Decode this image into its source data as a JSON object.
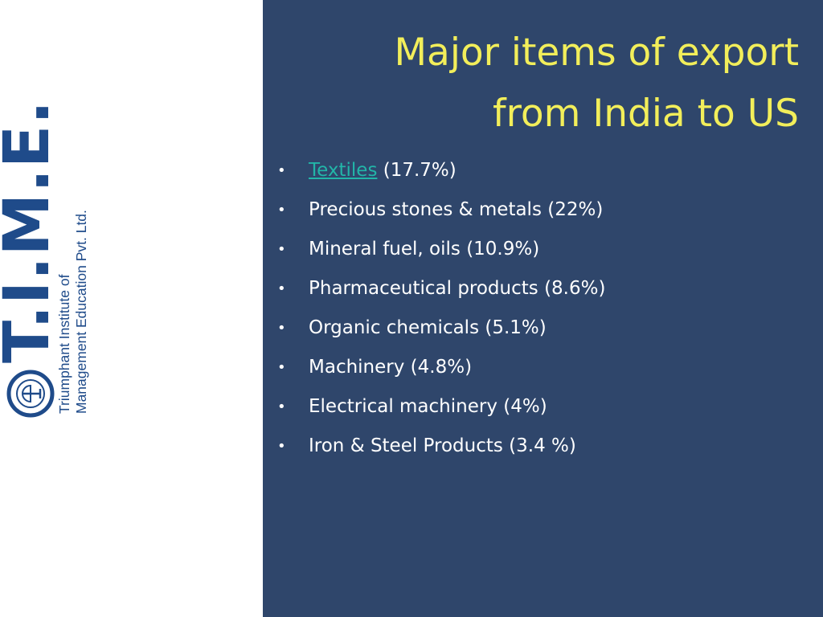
{
  "title": {
    "line1": "Major items of export",
    "line2": "from India to US"
  },
  "bullets": [
    {
      "link_text": "Textiles",
      "text": " (17.7%)"
    },
    {
      "text": "Precious stones & metals (22%)"
    },
    {
      "text": "Mineral fuel, oils (10.9%)"
    },
    {
      "text": "Pharmaceutical products (8.6%)"
    },
    {
      "text": "Organic chemicals (5.1%)"
    },
    {
      "text": "Machinery (4.8%)"
    },
    {
      "text": "Electrical machinery (4%)"
    },
    {
      "text": "Iron & Steel Products (3.4 %)"
    }
  ],
  "logo": {
    "mark": "T.I.M.E.",
    "name_line1": "Triumphant Institute of",
    "name_line2": "Management Education Pvt. Ltd.",
    "seal_text": "T.I.M.E.",
    "color": "#1f4b8a"
  },
  "colors": {
    "panel_background": "#2f466b",
    "title": "#f2ee5a",
    "bullet_text": "#ffffff",
    "link": "#22b5a8"
  }
}
